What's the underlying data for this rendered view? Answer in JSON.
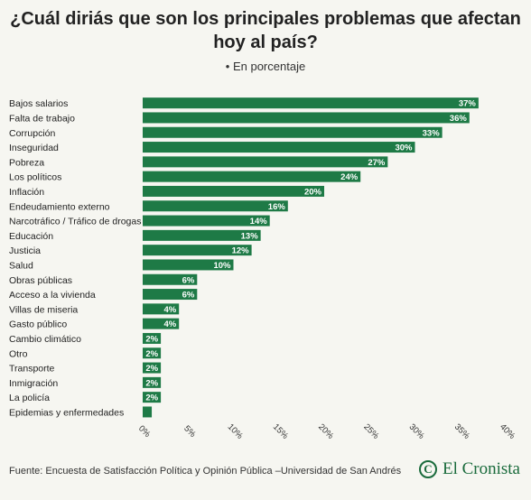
{
  "title": "¿Cuál diriás que son los principales problemas que afectan hoy al país?",
  "subtitle": "• En porcentaje",
  "footer": "Fuente: Encuesta de Satisfacción Política y Opinión Pública –Universidad de San Andrés",
  "brand": {
    "name": "El Cronista",
    "icon": "C"
  },
  "colors": {
    "bar": "#1e7a46",
    "background": "#f6f6f1"
  },
  "chart_data": {
    "type": "bar",
    "orientation": "horizontal",
    "categories": [
      "Bajos salarios",
      "Falta de trabajo",
      "Corrupción",
      "Inseguridad",
      "Pobreza",
      "Los políticos",
      "Inflación",
      "Endeudamiento externo",
      "Narcotráfico / Tráfico de drogas",
      "Educación",
      "Justicia",
      "Salud",
      "Obras públicas",
      "Acceso a la vivienda",
      "Villas de miseria",
      "Gasto público",
      "Cambio climático",
      "Otro",
      "Transporte",
      "Inmigración",
      "La policía",
      "Epidemias y enfermedades"
    ],
    "values": [
      37,
      36,
      33,
      30,
      27,
      24,
      20,
      16,
      14,
      13,
      12,
      10,
      6,
      6,
      4,
      4,
      2,
      2,
      2,
      2,
      2,
      1
    ],
    "value_labels": [
      "37%",
      "36%",
      "33%",
      "30%",
      "27%",
      "24%",
      "20%",
      "16%",
      "14%",
      "13%",
      "12%",
      "10%",
      "6%",
      "6%",
      "4%",
      "4%",
      "2%",
      "2%",
      "2%",
      "2%",
      "2%",
      ""
    ],
    "xlim": [
      0,
      40
    ],
    "xticks": [
      "0%",
      "5%",
      "10%",
      "15%",
      "20%",
      "25%",
      "30%",
      "35%",
      "40%"
    ],
    "grid": false
  }
}
